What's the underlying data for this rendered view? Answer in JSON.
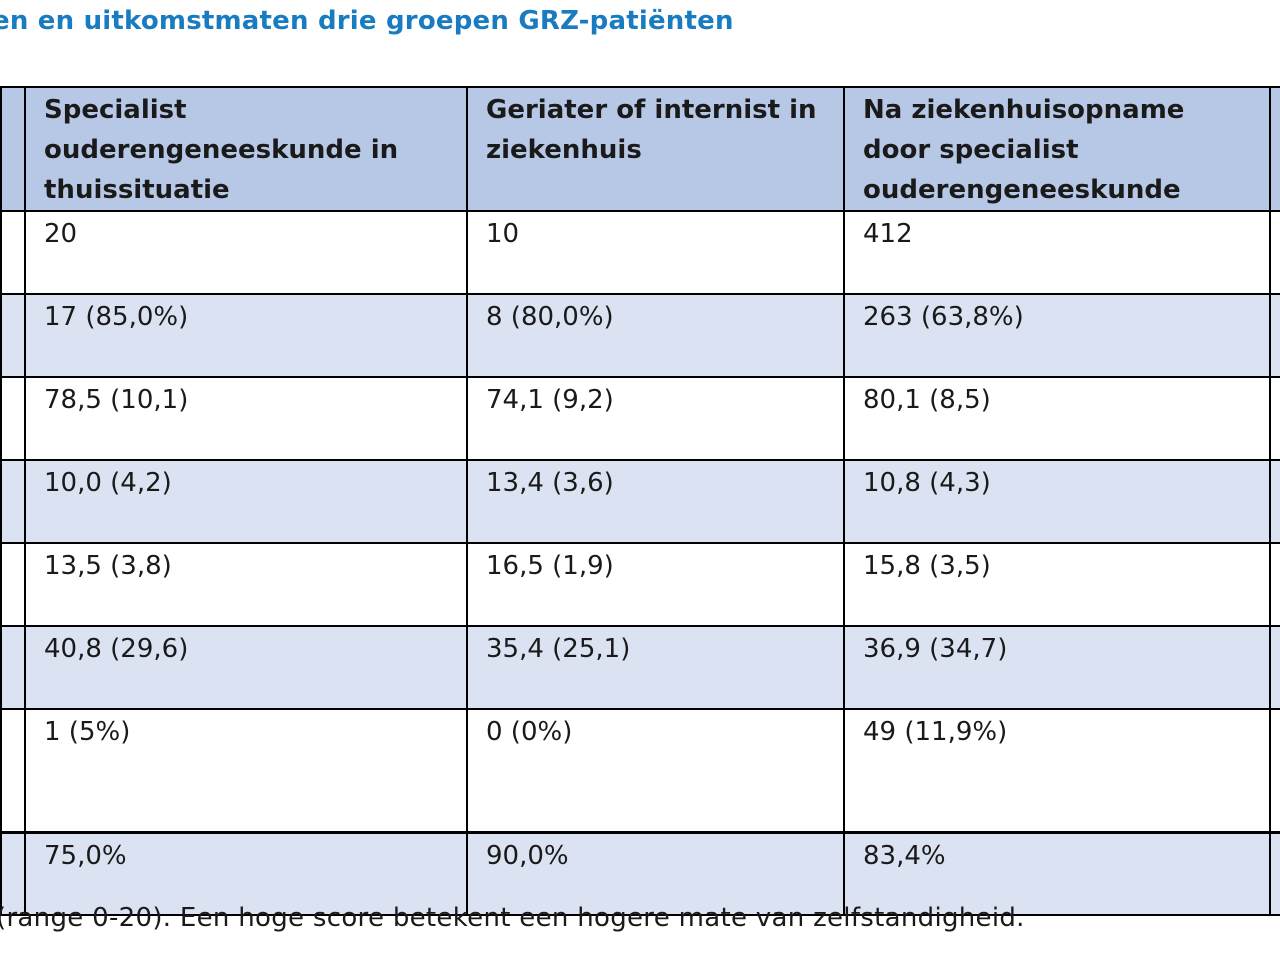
{
  "title": "en en uitkomstmaten drie groepen GRZ-patiënten",
  "table": {
    "headers": [
      "",
      "Specialist ouderengeneeskunde in thuissituatie",
      "Geriater of internist in ziekenhuis",
      "Na ziekenhuisopname door specialist ouderengeneeskunde",
      ""
    ],
    "rows": [
      [
        "",
        "20",
        "10",
        "412",
        ""
      ],
      [
        "",
        "17 (85,0%)",
        "8 (80,0%)",
        "263 (63,8%)",
        ""
      ],
      [
        "",
        "78,5 (10,1)",
        "74,1 (9,2)",
        "80,1 (8,5)",
        ""
      ],
      [
        "",
        "10,0 (4,2)",
        "13,4 (3,6)",
        "10,8 (4,3)",
        ""
      ],
      [
        "",
        "13,5 (3,8)",
        "16,5 (1,9)",
        "15,8 (3,5)",
        ""
      ],
      [
        "",
        "40,8 (29,6)",
        "35,4 (25,1)",
        "36,9 (34,7)",
        ""
      ],
      [
        ")",
        "1 (5%)",
        "0 (0%)",
        "49 (11,9%)",
        ""
      ],
      [
        "",
        "75,0%",
        "90,0%",
        "83,4%",
        ""
      ]
    ]
  },
  "footnote": "(range 0-20). Een hoge score betekent een hogere mate van zelfstandigheid.",
  "colors": {
    "title": "#1a7cc0",
    "header_bg": "#b7c8e6",
    "band_bg": "#dbe3f2"
  }
}
